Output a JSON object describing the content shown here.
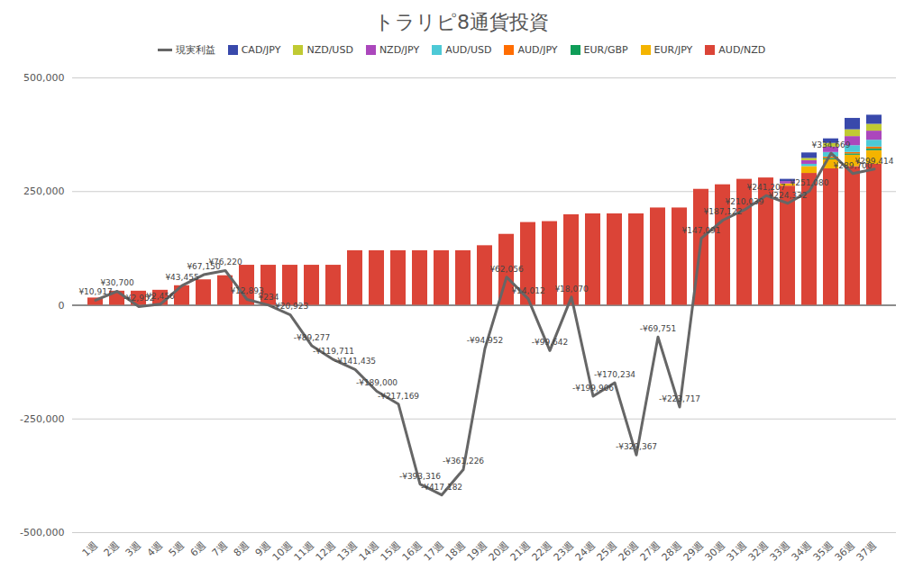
{
  "chart_data": {
    "type": "bar",
    "title": "トラリピ8通貨投資",
    "stacked": true,
    "grid": true,
    "legend": "top",
    "categories": [
      "1週",
      "2週",
      "3週",
      "4週",
      "5週",
      "6週",
      "7週",
      "8週",
      "9週",
      "10週",
      "11週",
      "12週",
      "13週",
      "14週",
      "15週",
      "16週",
      "17週",
      "18週",
      "19週",
      "20週",
      "21週",
      "22週",
      "23週",
      "24週",
      "25週",
      "26週",
      "27週",
      "28週",
      "29週",
      "30週",
      "31週",
      "32週",
      "33週",
      "34週",
      "35週",
      "36週",
      "37週"
    ],
    "ylim": [
      -500000,
      500000
    ],
    "yticks": [
      {
        "value": -500000,
        "label": "-500,000"
      },
      {
        "value": -250000,
        "label": "-250,000"
      },
      0,
      {
        "value": 250000,
        "label": "250,000"
      },
      {
        "value": 500000,
        "label": "500,000"
      }
    ],
    "series": [
      {
        "name": "現実利益",
        "type": "line",
        "color": "#666666",
        "data_labels": true,
        "values": [
          10917,
          30700,
          -2952,
          2456,
          43455,
          67150,
          76220,
          12893,
          234,
          -20923,
          -89277,
          -119711,
          -141435,
          -189000,
          -217169,
          -393316,
          -417182,
          -361226,
          -94952,
          62056,
          14012,
          -99642,
          18070,
          -199906,
          -170234,
          -329367,
          -69751,
          -223717,
          147091,
          187122,
          210039,
          241207,
          224332,
          251080,
          334669,
          289700,
          299414
        ],
        "value_labels": [
          "¥10,917",
          "¥30,700",
          "-¥2,952",
          "¥2,456",
          "¥43,455",
          "¥67,150",
          "¥76,220",
          "¥12,893",
          "¥234",
          "-¥20,923",
          "-¥89,277",
          "-¥119,711",
          "-¥141,435",
          "-¥189,000",
          "-¥217,169",
          "-¥393,316",
          "-¥417,182",
          "-¥361,226",
          "-¥94,952",
          "¥62,056",
          "¥14,012",
          "-¥99,642",
          "¥18,070",
          "-¥199,906",
          "-¥170,234",
          "-¥329,367",
          "-¥69,751",
          "-¥223,717",
          "¥147,091",
          "¥187,122",
          "¥210,039",
          "¥241,207",
          "¥224,332",
          "¥251,080",
          "¥334,669",
          "¥289,700",
          "¥299,414"
        ]
      },
      {
        "name": "CAD/JPY",
        "color": "#3949ab",
        "values": [
          0,
          0,
          0,
          0,
          0,
          0,
          0,
          0,
          0,
          0,
          0,
          0,
          0,
          0,
          0,
          0,
          0,
          0,
          0,
          0,
          0,
          0,
          0,
          0,
          0,
          0,
          0,
          0,
          0,
          0,
          0,
          0,
          5000,
          12000,
          10000,
          25000,
          20000
        ]
      },
      {
        "name": "NZD/USD",
        "color": "#c0ca33",
        "values": [
          0,
          0,
          0,
          0,
          0,
          0,
          0,
          0,
          0,
          0,
          0,
          0,
          0,
          0,
          0,
          0,
          0,
          0,
          0,
          0,
          0,
          0,
          0,
          0,
          0,
          0,
          0,
          0,
          0,
          0,
          0,
          0,
          0,
          5000,
          8000,
          15000,
          15000
        ]
      },
      {
        "name": "NZD/JPY",
        "color": "#ab47bc",
        "values": [
          0,
          0,
          0,
          0,
          0,
          0,
          0,
          0,
          0,
          0,
          0,
          0,
          0,
          0,
          0,
          0,
          0,
          0,
          0,
          0,
          0,
          0,
          0,
          0,
          0,
          0,
          0,
          0,
          0,
          0,
          0,
          0,
          5000,
          8000,
          12000,
          20000,
          20000
        ]
      },
      {
        "name": "AUD/USD",
        "color": "#4dc9d6",
        "values": [
          0,
          0,
          0,
          0,
          0,
          0,
          0,
          0,
          0,
          0,
          0,
          0,
          0,
          0,
          0,
          0,
          0,
          0,
          0,
          0,
          0,
          0,
          0,
          0,
          0,
          0,
          0,
          0,
          0,
          0,
          0,
          0,
          0,
          5000,
          10000,
          15000,
          15000
        ]
      },
      {
        "name": "AUD/JPY",
        "color": "#ff6d01",
        "values": [
          0,
          0,
          0,
          0,
          0,
          0,
          0,
          0,
          0,
          0,
          0,
          0,
          0,
          0,
          0,
          0,
          0,
          0,
          0,
          0,
          0,
          0,
          0,
          0,
          0,
          0,
          0,
          0,
          0,
          0,
          0,
          0,
          0,
          0,
          3000,
          3000,
          4000
        ]
      },
      {
        "name": "EUR/GBP",
        "color": "#0f9d58",
        "values": [
          0,
          0,
          0,
          0,
          0,
          0,
          0,
          0,
          0,
          0,
          0,
          0,
          0,
          0,
          0,
          0,
          0,
          0,
          0,
          0,
          0,
          0,
          0,
          0,
          0,
          0,
          0,
          0,
          0,
          0,
          0,
          0,
          0,
          0,
          3000,
          3000,
          4000
        ]
      },
      {
        "name": "EUR/JPY",
        "color": "#f4b400",
        "values": [
          0,
          0,
          0,
          0,
          0,
          0,
          0,
          0,
          0,
          0,
          0,
          0,
          0,
          0,
          0,
          0,
          0,
          0,
          0,
          0,
          0,
          0,
          0,
          0,
          0,
          0,
          0,
          0,
          0,
          0,
          0,
          0,
          5000,
          15000,
          20000,
          25000,
          30000
        ]
      },
      {
        "name": "AUD/NZD",
        "color": "#db4437",
        "values": [
          16000,
          31000,
          31000,
          33000,
          43000,
          56000,
          65000,
          88000,
          88000,
          88000,
          88000,
          88000,
          120000,
          120000,
          120000,
          120000,
          120000,
          120000,
          131000,
          156000,
          182000,
          184000,
          199000,
          201000,
          201000,
          201000,
          214000,
          214000,
          255000,
          265000,
          277000,
          280000,
          262000,
          290000,
          300000,
          305000,
          310000
        ]
      }
    ]
  }
}
